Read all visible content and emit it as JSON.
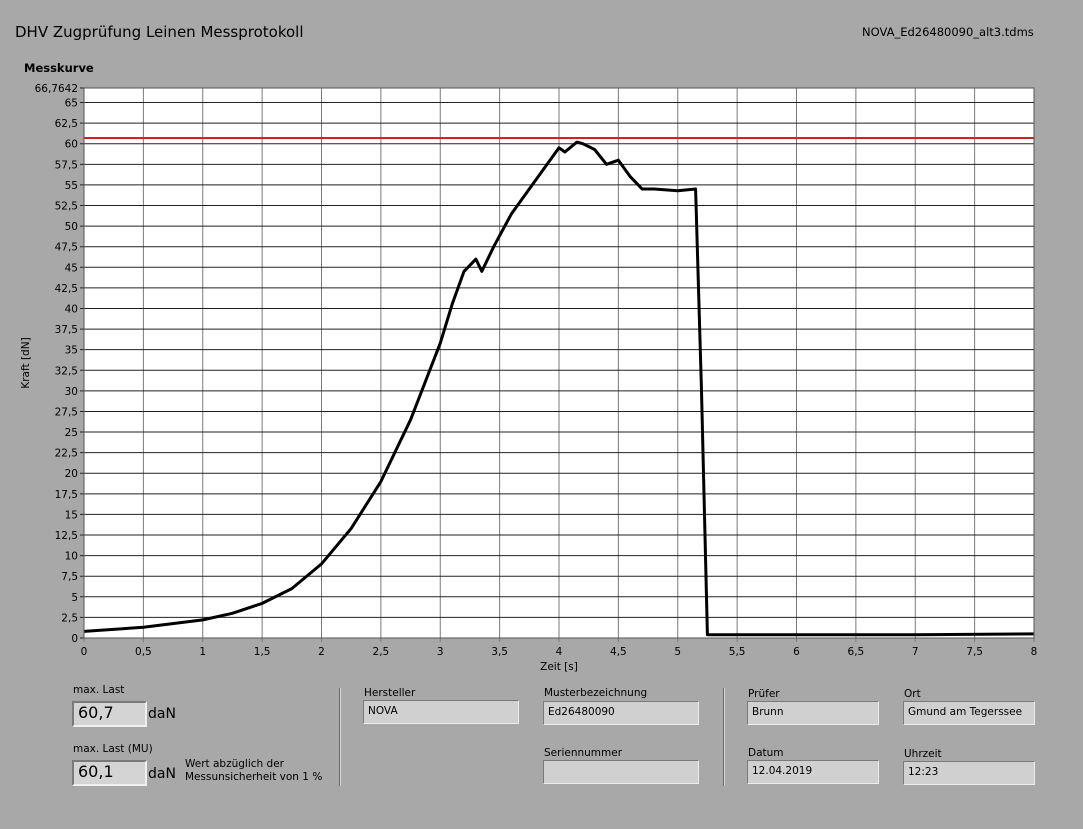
{
  "app_title": "DHV Zugprüfung Leinen Messprotokoll",
  "file_name": "NOVA_Ed26480090_alt3.tdms",
  "chart_label": "Messkurve",
  "chart_data": {
    "type": "line",
    "title": "Messkurve",
    "xlabel": "Zeit [s]",
    "ylabel": "Kraft [dN]",
    "xlim": [
      0,
      8
    ],
    "ylim": [
      0,
      66.7642
    ],
    "x_ticks": [
      "0",
      "0,5",
      "1",
      "1,5",
      "2",
      "2,5",
      "3",
      "3,5",
      "4",
      "4,5",
      "5",
      "5,5",
      "6",
      "6,5",
      "7",
      "7,5",
      "8"
    ],
    "y_ticks": [
      "0",
      "2,5",
      "5",
      "7,5",
      "10",
      "12,5",
      "15",
      "17,5",
      "20",
      "22,5",
      "25",
      "27,5",
      "30",
      "32,5",
      "35",
      "37,5",
      "40",
      "42,5",
      "45",
      "47,5",
      "50",
      "52,5",
      "55",
      "57,5",
      "60",
      "62,5",
      "65",
      "66,7642"
    ],
    "grid": true,
    "reference_line": {
      "y": 60.7,
      "color": "#d42020"
    },
    "series": [
      {
        "color": "#000000",
        "x": [
          0,
          0.5,
          1,
          1.25,
          1.5,
          1.75,
          2,
          2.25,
          2.5,
          2.75,
          3,
          3.1,
          3.2,
          3.3,
          3.35,
          3.45,
          3.6,
          3.75,
          3.9,
          4.0,
          4.05,
          4.15,
          4.2,
          4.3,
          4.4,
          4.5,
          4.6,
          4.7,
          4.8,
          5.0,
          5.15,
          5.2,
          5.25,
          6,
          7,
          8
        ],
        "y": [
          0.8,
          1.3,
          2.2,
          3.0,
          4.2,
          6.0,
          9.0,
          13.3,
          19.0,
          26.5,
          35.8,
          40.5,
          44.5,
          46.0,
          44.5,
          47.5,
          51.5,
          54.5,
          57.5,
          59.5,
          59.0,
          60.2,
          60.0,
          59.3,
          57.5,
          58.0,
          56.0,
          54.5,
          54.5,
          54.3,
          54.5,
          30.0,
          0.4,
          0.4,
          0.4,
          0.5
        ]
      }
    ]
  },
  "max_last": {
    "label": "max. Last",
    "value": "60,7",
    "unit": "daN"
  },
  "max_last_mu": {
    "label": "max. Last (MU)",
    "value": "60,1",
    "unit": "daN",
    "note_line1": "Wert abzüglich der",
    "note_line2": "Messunsicherheit von 1 %"
  },
  "hersteller": {
    "label": "Hersteller",
    "value": "NOVA"
  },
  "musterbezeichnung": {
    "label": "Musterbezeichnung",
    "value": "Ed26480090"
  },
  "seriennummer": {
    "label": "Seriennummer",
    "value": ""
  },
  "pruefer": {
    "label": "Prüfer",
    "value": "Brunn"
  },
  "ort": {
    "label": "Ort",
    "value": "Gmund am Tegerssee"
  },
  "datum": {
    "label": "Datum",
    "value": "12.04.2019"
  },
  "uhrzeit": {
    "label": "Uhrzeit",
    "value": "12:23"
  }
}
